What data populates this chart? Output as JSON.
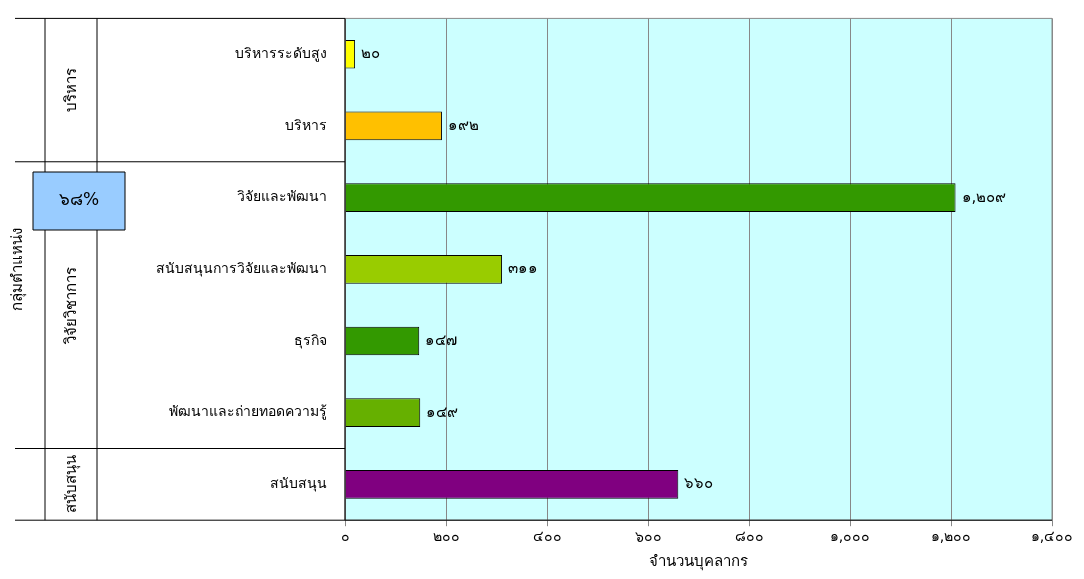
{
  "chart_data": {
    "type": "bar",
    "orientation": "horizontal",
    "categories": [
      "บริหารระดับสูง",
      "บริหาร",
      "วิจัยและพัฒนา",
      "สนับสนุนการวิจัยและพัฒนา",
      "ธุรกิจ",
      "พัฒนาและถ่ายทอดความรู้",
      "สนับสนุน"
    ],
    "values": [
      20,
      192,
      1209,
      311,
      147,
      149,
      660
    ],
    "colors": [
      "#ffff00",
      "#ffc000",
      "#339900",
      "#99cc00",
      "#339900",
      "#66b000",
      "#800080"
    ],
    "value_labels": [
      "๒๐",
      "๑๙๒",
      "๑,๒๐๙",
      "๓๑๑",
      "๑๔๗",
      "๑๔๙",
      "๖๖๐"
    ],
    "xlim": [
      0,
      1400
    ],
    "xticks": [
      {
        "value": 0,
        "label": "๐"
      },
      {
        "value": 200,
        "label": "๒๐๐"
      },
      {
        "value": 400,
        "label": "๔๐๐"
      },
      {
        "value": 600,
        "label": "๖๐๐"
      },
      {
        "value": 800,
        "label": "๘๐๐"
      },
      {
        "value": 1000,
        "label": "๑,๐๐๐"
      },
      {
        "value": 1200,
        "label": "๑,๒๐๐"
      },
      {
        "value": 1400,
        "label": "๑,๔๐๐"
      }
    ],
    "xlabel": "จำนวนบุคลากร",
    "annotations": [
      "บริหาร",
      "วิจัยวิชาการ",
      "สนับสนุน",
      "๖๘%",
      "กลุ่มตำแหน่ง"
    ],
    "grid": "x",
    "legend": false
  }
}
